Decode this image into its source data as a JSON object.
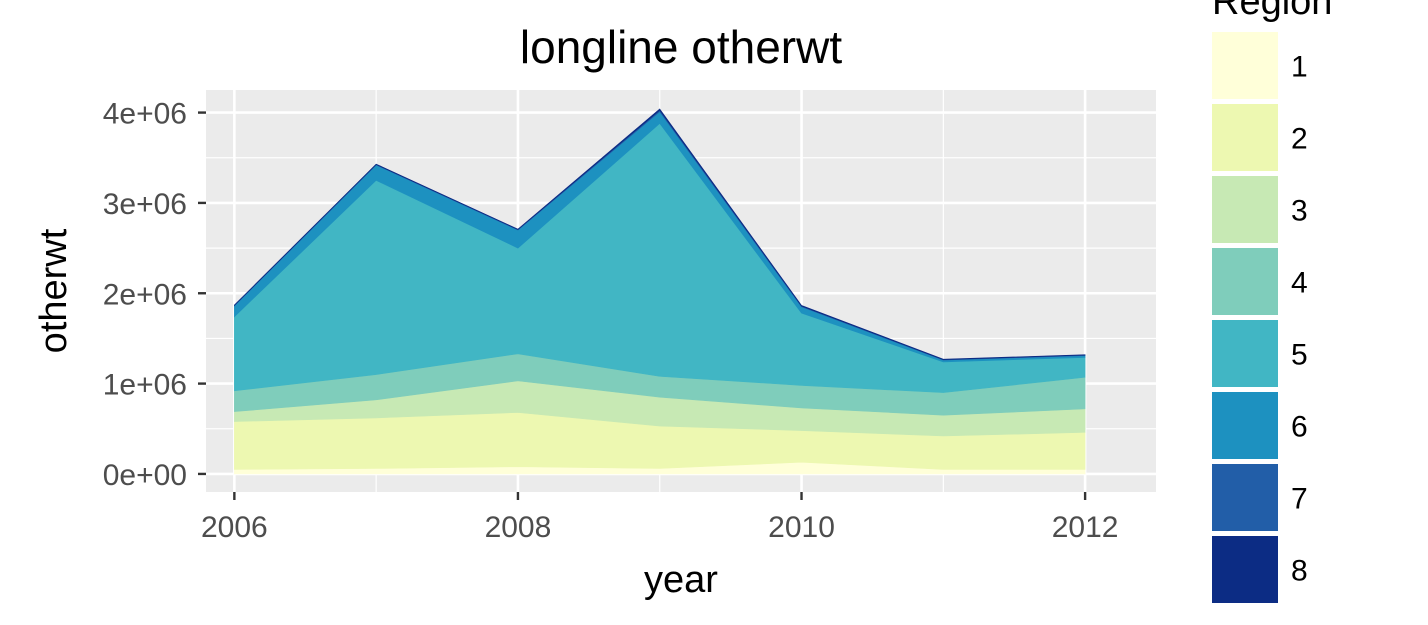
{
  "chart_data": {
    "type": "area",
    "stacked": true,
    "title": "longline otherwt",
    "xlabel": "year",
    "ylabel": "otherwt",
    "x": [
      2006,
      2007,
      2008,
      2009,
      2010,
      2011,
      2012
    ],
    "x_ticks": [
      "2006",
      "2008",
      "2010",
      "2012"
    ],
    "y_ticks": [
      "0e+00",
      "1e+06",
      "2e+06",
      "3e+06",
      "4e+06"
    ],
    "xlim": [
      2005.8,
      2012.5
    ],
    "ylim": [
      -200000,
      4250000
    ],
    "grid": true,
    "legend": {
      "title": "Region",
      "position": "right"
    },
    "series": [
      {
        "name": "1",
        "color": "#ffffd9",
        "values": [
          50000,
          60000,
          80000,
          60000,
          130000,
          50000,
          50000
        ]
      },
      {
        "name": "2",
        "color": "#edf8b1",
        "values": [
          530000,
          560000,
          600000,
          470000,
          350000,
          370000,
          410000
        ]
      },
      {
        "name": "3",
        "color": "#c7e9b4",
        "values": [
          110000,
          200000,
          350000,
          320000,
          250000,
          230000,
          260000
        ]
      },
      {
        "name": "4",
        "color": "#7fcdbb",
        "values": [
          230000,
          280000,
          300000,
          230000,
          250000,
          250000,
          350000
        ]
      },
      {
        "name": "5",
        "color": "#41b6c4",
        "values": [
          820000,
          2150000,
          1170000,
          2800000,
          800000,
          340000,
          220000
        ]
      },
      {
        "name": "6",
        "color": "#1d91c0",
        "values": [
          120000,
          170000,
          200000,
          130000,
          70000,
          20000,
          20000
        ]
      },
      {
        "name": "7",
        "color": "#225ea8",
        "values": [
          5000,
          5000,
          5000,
          15000,
          8000,
          5000,
          5000
        ]
      },
      {
        "name": "8",
        "color": "#0c2c84",
        "values": [
          5000,
          5000,
          5000,
          15000,
          8000,
          5000,
          5000
        ]
      }
    ]
  }
}
